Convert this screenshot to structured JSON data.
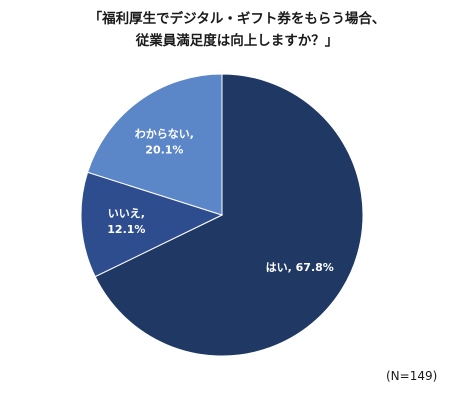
{
  "chart_data": {
    "type": "pie",
    "title_lines": [
      "「福利厚生でデジタル・ギフト券をもらう場合、",
      "従業員満足度は向上しますか？」"
    ],
    "categories": [
      "はい",
      "いいえ",
      "わからない"
    ],
    "values": [
      67.8,
      12.1,
      20.1
    ],
    "value_labels": [
      "67.8%",
      "12.1%",
      "20.1%"
    ],
    "slice_labels": [
      [
        "はい, 67.8%"
      ],
      [
        "いいえ,",
        "12.1%"
      ],
      [
        "わからない,",
        "20.1%"
      ]
    ],
    "colors": [
      "#1f3864",
      "#2e4d8f",
      "#5b86c8"
    ],
    "label_color": "#ffffff",
    "note": "(N=149)"
  }
}
